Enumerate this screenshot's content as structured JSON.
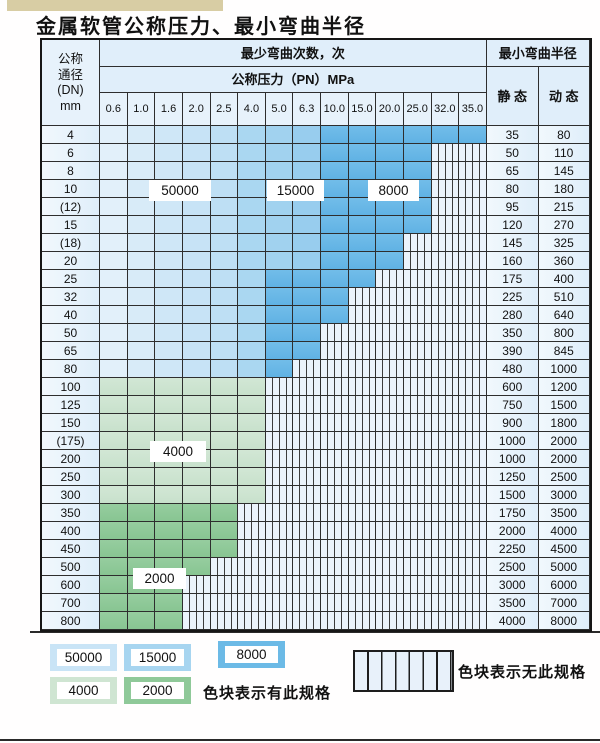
{
  "page": {
    "title": "金属软管公称压力、最小弯曲半径"
  },
  "table": {
    "corner_header": [
      "公称",
      "通径",
      "(DN)",
      "mm"
    ],
    "bend_cycles_header": "最少弯曲次数，次",
    "pressure_header": "公称压力（PN）MPa",
    "radius_header": "最小弯曲半径",
    "static_header": "静 态",
    "dynamic_header": "动 态",
    "pressure_columns": [
      "0.6",
      "1.0",
      "1.6",
      "2.0",
      "2.5",
      "4.0",
      "5.0",
      "6.3",
      "10.0",
      "15.0",
      "20.0",
      "25.0",
      "32.0",
      "35.0"
    ],
    "cell_code_legend": {
      "L": "50000",
      "M": "15000",
      "D": "8000",
      "F": "4000",
      "T": "2000",
      "X": "无此规格"
    },
    "rows": [
      {
        "dn": "4",
        "cells": "LLLLLMMMDDDDDD",
        "static": "35",
        "dynamic": "80"
      },
      {
        "dn": "6",
        "cells": "LLLLLMMMDDDDXX",
        "static": "50",
        "dynamic": "110"
      },
      {
        "dn": "8",
        "cells": "LLLLLMMMDDDDXX",
        "static": "65",
        "dynamic": "145"
      },
      {
        "dn": "10",
        "cells": "LLLLLMMMDDDDXX",
        "static": "80",
        "dynamic": "180"
      },
      {
        "dn": "(12)",
        "cells": "LLLLLMMMDDDDXX",
        "static": "95",
        "dynamic": "215"
      },
      {
        "dn": "15",
        "cells": "LLLLLMMMDDDDXX",
        "static": "120",
        "dynamic": "270"
      },
      {
        "dn": "(18)",
        "cells": "LLLLLMMMDDDXXX",
        "static": "145",
        "dynamic": "325"
      },
      {
        "dn": "20",
        "cells": "LLLLLMMMDDDXXX",
        "static": "160",
        "dynamic": "360"
      },
      {
        "dn": "25",
        "cells": "LLLLLMDDDDXXXX",
        "static": "175",
        "dynamic": "400"
      },
      {
        "dn": "32",
        "cells": "LLLLLMDDDXXXXX",
        "static": "225",
        "dynamic": "510"
      },
      {
        "dn": "40",
        "cells": "LLLLLMDDDXXXXX",
        "static": "280",
        "dynamic": "640"
      },
      {
        "dn": "50",
        "cells": "LLLLLMDDXXXXXX",
        "static": "350",
        "dynamic": "800"
      },
      {
        "dn": "65",
        "cells": "LLLLLMDDXXXXXX",
        "static": "390",
        "dynamic": "845"
      },
      {
        "dn": "80",
        "cells": "LLLLLMDXXXXXXX",
        "static": "480",
        "dynamic": "1000"
      },
      {
        "dn": "100",
        "cells": "FFFFFFXXXXXXXX",
        "static": "600",
        "dynamic": "1200"
      },
      {
        "dn": "125",
        "cells": "FFFFFFXXXXXXXX",
        "static": "750",
        "dynamic": "1500"
      },
      {
        "dn": "150",
        "cells": "FFFFFFXXXXXXXX",
        "static": "900",
        "dynamic": "1800"
      },
      {
        "dn": "(175)",
        "cells": "FFFFFFXXXXXXXX",
        "static": "1000",
        "dynamic": "2000"
      },
      {
        "dn": "200",
        "cells": "FFFFFFXXXXXXXX",
        "static": "1000",
        "dynamic": "2000"
      },
      {
        "dn": "250",
        "cells": "FFFFFFXXXXXXXX",
        "static": "1250",
        "dynamic": "2500"
      },
      {
        "dn": "300",
        "cells": "FFFFFFXXXXXXXX",
        "static": "1500",
        "dynamic": "3000"
      },
      {
        "dn": "350",
        "cells": "TTTTTXXXXXXXXX",
        "static": "1750",
        "dynamic": "3500"
      },
      {
        "dn": "400",
        "cells": "TTTTTXXXXXXXXX",
        "static": "2000",
        "dynamic": "4000"
      },
      {
        "dn": "450",
        "cells": "TTTTTXXXXXXXXX",
        "static": "2250",
        "dynamic": "4500"
      },
      {
        "dn": "500",
        "cells": "TTTTXXXXXXXXXX",
        "static": "2500",
        "dynamic": "5000"
      },
      {
        "dn": "600",
        "cells": "TTTXXXXXXXXXXX",
        "static": "3000",
        "dynamic": "6000"
      },
      {
        "dn": "700",
        "cells": "TTTXXXXXXXXXXX",
        "static": "3500",
        "dynamic": "7000"
      },
      {
        "dn": "800",
        "cells": "TTTXXXXXXXXXXX",
        "static": "4000",
        "dynamic": "8000"
      }
    ]
  },
  "overlays": [
    {
      "text": "50000"
    },
    {
      "text": "15000"
    },
    {
      "text": "8000"
    },
    {
      "text": "4000"
    },
    {
      "text": "2000"
    }
  ],
  "legend": {
    "items": [
      {
        "value": "50000",
        "color": "#c9e4f6"
      },
      {
        "value": "15000",
        "color": "#a7d5f0"
      },
      {
        "value": "8000",
        "color": "#6cbae6"
      },
      {
        "value": "4000",
        "color": "#cfe5d2"
      },
      {
        "value": "2000",
        "color": "#8fc999"
      }
    ],
    "has_spec_text": "色块表示有此规格",
    "no_spec_text": "色块表示无此规格"
  },
  "colors": {
    "blue_50000": "#c9e4f6",
    "blue_15000": "#a7d5f0",
    "blue_8000": "#6cbae6",
    "green_4000": "#cfe5d2",
    "green_2000": "#8fc999",
    "hatch_bg": "#ebf3fb",
    "header_bg": "#e0eefa",
    "grid_border": "#2e2e2e"
  }
}
